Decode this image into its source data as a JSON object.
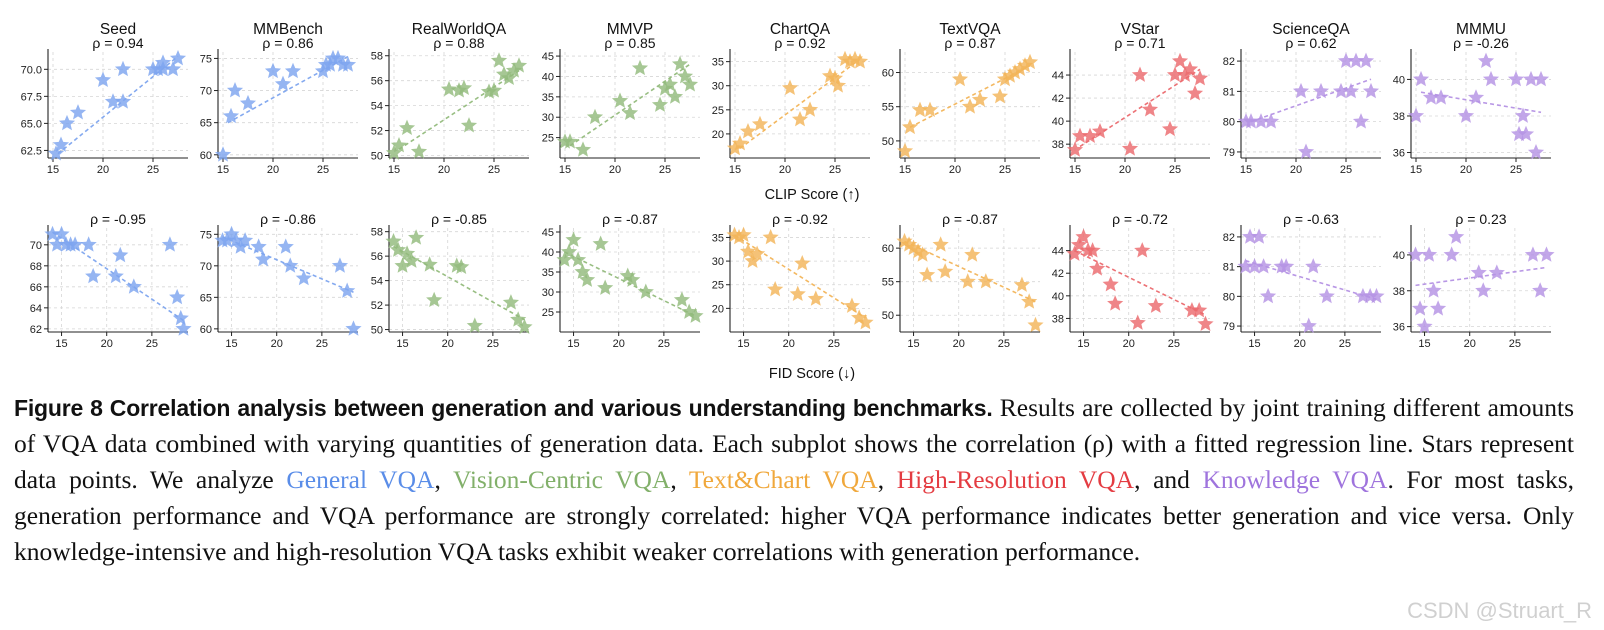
{
  "figure": {
    "xlabel_top": "CLIP Score (↑)",
    "xlabel_bottom": "FID Score (↓)"
  },
  "caption": {
    "lead": "Figure 8   Correlation analysis between generation and various understanding benchmarks.",
    "t1": " Results are collected by joint training different amounts of VQA data combined with varying quantities of generation data. Each subplot shows the correlation (ρ) with a fitted regression line. Stars represent data points. We analyze ",
    "c_general": "General VQA",
    "s1": ", ",
    "c_vision": "Vision-Centric VQA",
    "s2": ", ",
    "c_text": "Text&Chart VQA",
    "s3": ", ",
    "c_hires": "High-Resolution VQA",
    "s4": ", and ",
    "c_know": "Knowledge VQA",
    "t2": ". For most tasks, generation performance and VQA performance are strongly correlated: higher VQA performance indicates better generation and vice versa. Only knowledge-intensive and high-resolution VQA tasks exhibit weaker correlations with generation performance."
  },
  "colors": {
    "general": "#7ea5ef",
    "vision": "#93bb7c",
    "textchart": "#f3b559",
    "hires": "#ec6a6e",
    "knowledge": "#b592e4"
  },
  "watermark": "CSDN @Struart_R",
  "chart_data": [
    {
      "type": "scatter",
      "row": "clip",
      "title": "Seed",
      "rho": "ρ = 0.94",
      "color": "#7ea5ef",
      "xlim": [
        14.5,
        28.5
      ],
      "ylim": [
        61.8,
        71.6
      ],
      "xticks": [
        15,
        20,
        25
      ],
      "yticks": [
        62.5,
        65.0,
        67.5,
        70.0
      ],
      "ytick_labels": [
        "62.5",
        "65.0",
        "67.5",
        "70.0"
      ],
      "x": [
        15.3,
        15.8,
        16.4,
        17.5,
        20,
        21,
        22,
        22,
        25,
        25.5,
        26,
        26,
        27,
        27.5
      ],
      "y": [
        62.2,
        63,
        65,
        66,
        69,
        67,
        70,
        67,
        70,
        70,
        70.6,
        70,
        70,
        71
      ],
      "fit": [
        [
          15.5,
          62.2
        ],
        [
          27.5,
          71.2
        ]
      ]
    },
    {
      "type": "scatter",
      "row": "clip",
      "title": "MMBench",
      "rho": "ρ = 0.86",
      "color": "#7ea5ef",
      "xlim": [
        14.5,
        28.5
      ],
      "ylim": [
        59.5,
        76.0
      ],
      "xticks": [
        15,
        20,
        25
      ],
      "yticks": [
        60,
        65,
        70,
        75
      ],
      "ytick_labels": [
        "60",
        "65",
        "70",
        "75"
      ],
      "x": [
        15,
        15.8,
        16.2,
        17.5,
        20,
        21,
        22,
        25,
        25.3,
        25.7,
        26,
        26.5,
        27,
        27.5
      ],
      "y": [
        60,
        66,
        70,
        68,
        73,
        71,
        73,
        73,
        74,
        74,
        75,
        75,
        74,
        74
      ],
      "fit": [
        [
          15.5,
          65
        ],
        [
          27.5,
          75.3
        ]
      ]
    },
    {
      "type": "scatter",
      "row": "clip",
      "title": "RealWorldQA",
      "rho": "ρ = 0.88",
      "color": "#93bb7c",
      "xlim": [
        14.5,
        28.5
      ],
      "ylim": [
        49.8,
        58.3
      ],
      "xticks": [
        15,
        20,
        25
      ],
      "yticks": [
        50,
        52,
        54,
        56,
        58
      ],
      "ytick_labels": [
        "50",
        "52",
        "54",
        "56",
        "58"
      ],
      "x": [
        15,
        15.5,
        16.3,
        17.5,
        20.5,
        21.5,
        22,
        22.5,
        24.5,
        25,
        25.5,
        26,
        26.5,
        27,
        27.5
      ],
      "y": [
        50.2,
        50.8,
        52.2,
        50.3,
        55.3,
        55.2,
        55.4,
        52.4,
        55.1,
        55.2,
        57.6,
        56.5,
        56.2,
        56.8,
        57.2
      ],
      "fit": [
        [
          15.5,
          50.5
        ],
        [
          27.5,
          56.8
        ]
      ]
    },
    {
      "type": "scatter",
      "row": "clip",
      "title": "MMVP",
      "rho": "ρ = 0.85",
      "color": "#93bb7c",
      "xlim": [
        14.5,
        28.5
      ],
      "ylim": [
        20.0,
        46.0
      ],
      "xticks": [
        15,
        20,
        25
      ],
      "yticks": [
        25,
        30,
        35,
        40,
        45
      ],
      "ytick_labels": [
        "25",
        "30",
        "35",
        "40",
        "45"
      ],
      "x": [
        15,
        15.5,
        16.8,
        18,
        20.5,
        21.5,
        22.5,
        24.5,
        25,
        25.5,
        26,
        26.5,
        27,
        27.5
      ],
      "y": [
        24,
        24,
        22,
        30,
        34,
        31,
        42,
        33,
        37,
        38,
        35,
        43,
        40,
        38
      ],
      "fit": [
        [
          15.5,
          23
        ],
        [
          27.5,
          43
        ]
      ]
    },
    {
      "type": "scatter",
      "row": "clip",
      "title": "ChartQA",
      "rho": "ρ = 0.92",
      "color": "#f3b559",
      "xlim": [
        14.5,
        28.5
      ],
      "ylim": [
        15.0,
        37.0
      ],
      "xticks": [
        15,
        20,
        25
      ],
      "yticks": [
        20,
        25,
        30,
        35
      ],
      "ytick_labels": [
        "20",
        "25",
        "30",
        "35"
      ],
      "x": [
        15,
        15.5,
        16.3,
        17.5,
        20.5,
        21.5,
        22.5,
        24.5,
        25,
        25.3,
        26,
        26.5,
        27,
        27.5
      ],
      "y": [
        17,
        18,
        20.5,
        22,
        29.5,
        23,
        25,
        32,
        31.5,
        30,
        35.5,
        35,
        35.5,
        35
      ],
      "fit": [
        [
          15.5,
          17
        ],
        [
          27.5,
          35.5
        ]
      ]
    },
    {
      "type": "scatter",
      "row": "clip",
      "title": "TextVQA",
      "rho": "ρ = 0.87",
      "color": "#f3b559",
      "xlim": [
        14.5,
        28.5
      ],
      "ylim": [
        47.5,
        63.0
      ],
      "xticks": [
        15,
        20,
        25
      ],
      "yticks": [
        50,
        55,
        60
      ],
      "ytick_labels": [
        "50",
        "55",
        "60"
      ],
      "x": [
        15,
        15.5,
        16.5,
        17.5,
        20.5,
        21.5,
        22.5,
        24.5,
        25,
        25.5,
        26,
        26.5,
        27,
        27.5
      ],
      "y": [
        48.5,
        52,
        54.5,
        54.5,
        59,
        55,
        56,
        56.5,
        59,
        59.5,
        60,
        60.5,
        61,
        61.5
      ],
      "fit": [
        [
          15.5,
          52
        ],
        [
          27.5,
          61
        ]
      ]
    },
    {
      "type": "scatter",
      "row": "clip",
      "title": "VStar",
      "rho": "ρ = 0.71",
      "color": "#ec6a6e",
      "xlim": [
        14.5,
        28.5
      ],
      "ylim": [
        36.8,
        46.0
      ],
      "xticks": [
        15,
        20,
        25
      ],
      "yticks": [
        38,
        40,
        42,
        44
      ],
      "ytick_labels": [
        "38",
        "40",
        "42",
        "44"
      ],
      "x": [
        15,
        15.5,
        16.5,
        17.5,
        20.5,
        21.5,
        22.5,
        24.5,
        25,
        25.5,
        26,
        26.5,
        27,
        27.5
      ],
      "y": [
        37.5,
        38.7,
        38.7,
        39.1,
        37.6,
        44,
        41,
        39.3,
        44,
        45.2,
        44,
        44.5,
        42.4,
        43.7
      ],
      "fit": [
        [
          15.5,
          37.8
        ],
        [
          27.5,
          44.5
        ]
      ]
    },
    {
      "type": "scatter",
      "row": "clip",
      "title": "ScienceQA",
      "rho": "ρ = 0.62",
      "color": "#b592e4",
      "xlim": [
        14.5,
        28.5
      ],
      "ylim": [
        78.8,
        82.3
      ],
      "xticks": [
        15,
        20,
        25
      ],
      "yticks": [
        79,
        80,
        81,
        82
      ],
      "ytick_labels": [
        "79",
        "80",
        "81",
        "82"
      ],
      "x": [
        15,
        15.5,
        16.5,
        17.5,
        20.5,
        21,
        22.5,
        24.5,
        25,
        25.5,
        26,
        26.5,
        27,
        27.5
      ],
      "y": [
        80,
        80,
        80,
        80,
        81,
        79,
        81,
        81,
        82,
        81,
        82,
        80,
        82,
        81
      ],
      "fit": [
        [
          15.5,
          80
        ],
        [
          27.5,
          81.4
        ]
      ]
    },
    {
      "type": "scatter",
      "row": "clip",
      "title": "MMMU",
      "rho": "ρ = -0.26",
      "color": "#b592e4",
      "xlim": [
        14.5,
        28.5
      ],
      "ylim": [
        35.7,
        41.5
      ],
      "xticks": [
        15,
        20,
        25
      ],
      "yticks": [
        36,
        38,
        40
      ],
      "ytick_labels": [
        "36",
        "38",
        "40"
      ],
      "x": [
        15,
        15.5,
        16.5,
        17.5,
        20,
        21,
        22,
        22.5,
        25,
        25.3,
        25.7,
        26,
        26.5,
        27,
        27.5
      ],
      "y": [
        38,
        40,
        39,
        39,
        38,
        39,
        41,
        40,
        40,
        37,
        38,
        37,
        40,
        36,
        40
      ],
      "fit": [
        [
          15.5,
          39.3
        ],
        [
          27.5,
          38.2
        ]
      ]
    },
    {
      "type": "scatter",
      "row": "fid",
      "title": "",
      "rho": "ρ = -0.95",
      "color": "#7ea5ef",
      "xlim": [
        13.5,
        29.0
      ],
      "ylim": [
        61.7,
        71.6
      ],
      "xticks": [
        15,
        20,
        25
      ],
      "yticks": [
        62,
        64,
        66,
        68,
        70
      ],
      "ytick_labels": [
        "62",
        "64",
        "66",
        "68",
        "70"
      ],
      "x": [
        14,
        14.5,
        15,
        15.5,
        16,
        16.5,
        18,
        18.5,
        21,
        21.5,
        23,
        27,
        27.8,
        28.2,
        28.5
      ],
      "y": [
        71,
        70,
        71,
        70,
        70,
        70,
        70,
        67,
        67,
        69,
        66,
        70,
        65,
        63,
        62
      ],
      "fit": [
        [
          14,
          71.2
        ],
        [
          28.5,
          62.8
        ]
      ]
    },
    {
      "type": "scatter",
      "row": "fid",
      "title": "",
      "rho": "ρ = -0.86",
      "color": "#7ea5ef",
      "xlim": [
        13.5,
        29.0
      ],
      "ylim": [
        59.5,
        76.0
      ],
      "xticks": [
        15,
        20,
        25
      ],
      "yticks": [
        60,
        65,
        70,
        75
      ],
      "ytick_labels": [
        "60",
        "65",
        "70",
        "75"
      ],
      "x": [
        14,
        14.5,
        15,
        15.5,
        16,
        16.5,
        18,
        18.5,
        21,
        21.5,
        23,
        27,
        27.8,
        28.5
      ],
      "y": [
        74,
        74,
        75,
        74,
        73,
        74,
        73,
        71,
        73,
        70,
        68,
        70,
        66,
        60
      ],
      "fit": [
        [
          14,
          74.6
        ],
        [
          28.5,
          65.8
        ]
      ]
    },
    {
      "type": "scatter",
      "row": "fid",
      "title": "",
      "rho": "ρ = -0.85",
      "color": "#93bb7c",
      "xlim": [
        13.5,
        29.0
      ],
      "ylim": [
        49.8,
        58.3
      ],
      "xticks": [
        15,
        20,
        25
      ],
      "yticks": [
        50,
        52,
        54,
        56,
        58
      ],
      "ytick_labels": [
        "50",
        "52",
        "54",
        "56",
        "58"
      ],
      "x": [
        14,
        14.5,
        15,
        15.5,
        16,
        16.5,
        18,
        18.5,
        21,
        21.5,
        23,
        27,
        27.8,
        28.5
      ],
      "y": [
        57.2,
        56.5,
        55.2,
        56.2,
        55.6,
        57.5,
        55.3,
        52.4,
        55.2,
        55.1,
        50.3,
        52.2,
        50.8,
        50.2
      ],
      "fit": [
        [
          14,
          56.8
        ],
        [
          28.5,
          50.8
        ]
      ]
    },
    {
      "type": "scatter",
      "row": "fid",
      "title": "",
      "rho": "ρ = -0.87",
      "color": "#93bb7c",
      "xlim": [
        13.5,
        29.0
      ],
      "ylim": [
        20.0,
        46.0
      ],
      "xticks": [
        15,
        20,
        25
      ],
      "yticks": [
        25,
        30,
        35,
        40,
        45
      ],
      "ytick_labels": [
        "25",
        "30",
        "35",
        "40",
        "45"
      ],
      "x": [
        14,
        14.5,
        15,
        15.5,
        16,
        16.5,
        18,
        18.5,
        21,
        21.5,
        23,
        27,
        27.8,
        28.5
      ],
      "y": [
        38,
        40,
        43,
        38,
        35,
        33,
        42,
        31,
        34,
        33,
        30,
        28,
        25,
        24
      ],
      "fit": [
        [
          14,
          40
        ],
        [
          28.5,
          24
        ]
      ]
    },
    {
      "type": "scatter",
      "row": "fid",
      "title": "",
      "rho": "ρ = -0.92",
      "color": "#f3b559",
      "xlim": [
        13.5,
        29.0
      ],
      "ylim": [
        15.0,
        37.0
      ],
      "xticks": [
        15,
        20,
        25
      ],
      "yticks": [
        20,
        25,
        30,
        35
      ],
      "ytick_labels": [
        "20",
        "25",
        "30",
        "35"
      ],
      "x": [
        14,
        14.5,
        15,
        15.5,
        16,
        16.5,
        18,
        18.5,
        21,
        21.5,
        23,
        27,
        27.8,
        28.5
      ],
      "y": [
        35.5,
        35,
        35.5,
        32,
        30,
        31.5,
        35,
        24,
        23,
        29.5,
        22,
        20.5,
        18,
        17
      ],
      "fit": [
        [
          14,
          35.5
        ],
        [
          28.5,
          18
        ]
      ]
    },
    {
      "type": "scatter",
      "row": "fid",
      "title": "",
      "rho": "ρ = -0.87",
      "color": "#f3b559",
      "xlim": [
        13.5,
        29.0
      ],
      "ylim": [
        47.5,
        63.0
      ],
      "xticks": [
        15,
        20,
        25
      ],
      "yticks": [
        50,
        55,
        60
      ],
      "ytick_labels": [
        "50",
        "55",
        "60"
      ],
      "x": [
        14,
        14.5,
        15,
        15.5,
        16,
        16.5,
        18,
        18.5,
        21,
        21.5,
        23,
        27,
        27.8,
        28.5
      ],
      "y": [
        61,
        60.5,
        60,
        59.5,
        59,
        56,
        60.5,
        56.5,
        55,
        59,
        55,
        54.5,
        52,
        48.5
      ],
      "fit": [
        [
          14,
          61
        ],
        [
          28.5,
          52
        ]
      ]
    },
    {
      "type": "scatter",
      "row": "fid",
      "title": "",
      "rho": "ρ = -0.72",
      "color": "#ec6a6e",
      "xlim": [
        13.5,
        29.0
      ],
      "ylim": [
        36.8,
        46.0
      ],
      "xticks": [
        15,
        20,
        25
      ],
      "yticks": [
        38,
        40,
        42,
        44
      ],
      "ytick_labels": [
        "38",
        "40",
        "42",
        "44"
      ],
      "x": [
        14,
        14.5,
        15,
        15.5,
        16,
        16.5,
        18,
        18.5,
        21,
        21.5,
        23,
        27,
        27.8,
        28.5
      ],
      "y": [
        43.7,
        44.5,
        45.2,
        44,
        44,
        42.4,
        41,
        39.3,
        37.6,
        44,
        39.1,
        38.7,
        38.7,
        37.5
      ],
      "fit": [
        [
          14,
          44
        ],
        [
          28.5,
          38.3
        ]
      ]
    },
    {
      "type": "scatter",
      "row": "fid",
      "title": "",
      "rho": "ρ = -0.63",
      "color": "#b592e4",
      "xlim": [
        13.5,
        29.0
      ],
      "ylim": [
        78.8,
        82.3
      ],
      "xticks": [
        15,
        20,
        25
      ],
      "yticks": [
        79,
        80,
        81,
        82
      ],
      "ytick_labels": [
        "79",
        "80",
        "81",
        "82"
      ],
      "x": [
        14,
        14.5,
        15,
        15.5,
        16,
        16.5,
        18,
        18.5,
        21,
        21.5,
        23,
        27,
        27.8,
        28.5
      ],
      "y": [
        81,
        82,
        81,
        82,
        81,
        80,
        81,
        81,
        79,
        81,
        80,
        80,
        80,
        80
      ],
      "fit": [
        [
          14,
          81.2
        ],
        [
          28.5,
          79.9
        ]
      ]
    },
    {
      "type": "scatter",
      "row": "fid",
      "title": "",
      "rho": "ρ = 0.23",
      "color": "#b592e4",
      "xlim": [
        13.5,
        29.0
      ],
      "ylim": [
        35.7,
        41.5
      ],
      "xticks": [
        15,
        20,
        25
      ],
      "yticks": [
        36,
        38,
        40
      ],
      "ytick_labels": [
        "36",
        "38",
        "40"
      ],
      "x": [
        14,
        14.5,
        15,
        15.5,
        16,
        16.5,
        18,
        18.5,
        21,
        21.5,
        23,
        27,
        27.8,
        28.5
      ],
      "y": [
        40,
        37,
        36,
        40,
        38,
        37,
        40,
        41,
        39,
        38,
        39,
        40,
        38,
        40
      ],
      "fit": [
        [
          14,
          38.3
        ],
        [
          28.5,
          39.3
        ]
      ]
    }
  ]
}
